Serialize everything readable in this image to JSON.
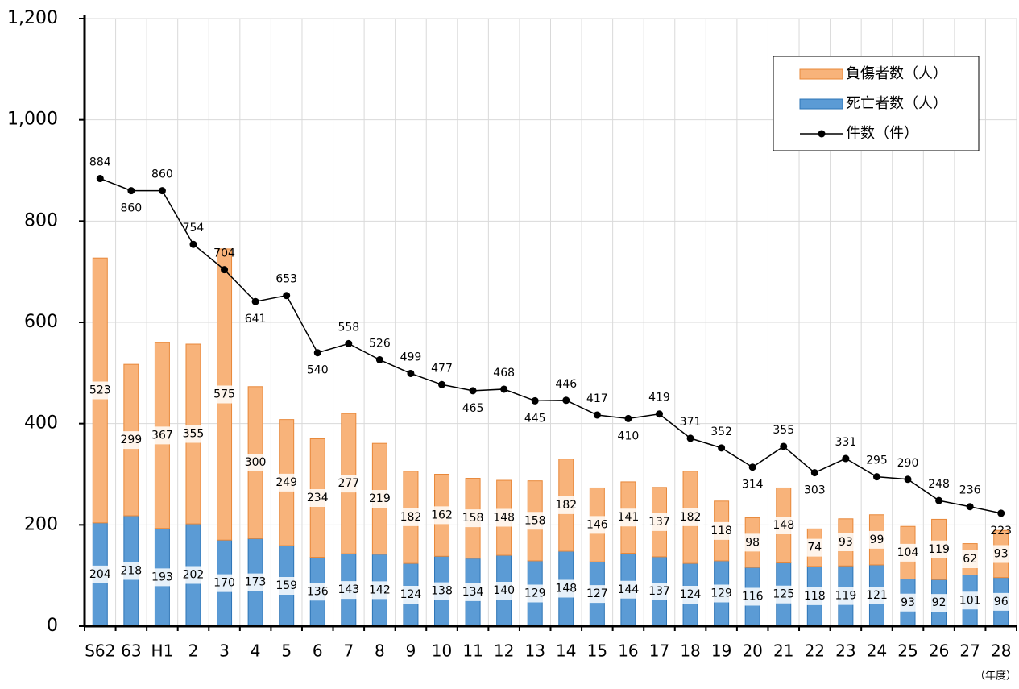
{
  "chart_data": {
    "type": "bar",
    "stacked": true,
    "categories": [
      "S62",
      "63",
      "H1",
      "2",
      "3",
      "4",
      "5",
      "6",
      "7",
      "8",
      "9",
      "10",
      "11",
      "12",
      "13",
      "14",
      "15",
      "16",
      "17",
      "18",
      "19",
      "20",
      "21",
      "22",
      "23",
      "24",
      "25",
      "26",
      "27",
      "28"
    ],
    "x_unit": "（年度）",
    "series": [
      {
        "name": "死亡者数（人）",
        "color": "#5b9bd5",
        "values": [
          204,
          218,
          193,
          202,
          170,
          173,
          159,
          136,
          143,
          142,
          124,
          138,
          134,
          140,
          129,
          148,
          127,
          144,
          137,
          124,
          129,
          116,
          125,
          118,
          119,
          121,
          93,
          92,
          101,
          96
        ]
      },
      {
        "name": "負傷者数（人）",
        "color": "#f8b37a",
        "values": [
          523,
          299,
          367,
          355,
          575,
          300,
          249,
          234,
          277,
          219,
          182,
          162,
          158,
          148,
          158,
          182,
          146,
          141,
          137,
          182,
          118,
          98,
          148,
          74,
          93,
          99,
          104,
          119,
          62,
          93
        ]
      },
      {
        "name": "件数（件）",
        "color": "#000000",
        "type": "line",
        "values": [
          884,
          860,
          860,
          754,
          704,
          641,
          653,
          540,
          558,
          526,
          499,
          477,
          465,
          468,
          445,
          446,
          417,
          410,
          419,
          371,
          352,
          314,
          355,
          303,
          331,
          295,
          290,
          248,
          236,
          223
        ]
      }
    ],
    "ylim": [
      0,
      1200
    ],
    "yticks": [
      0,
      200,
      400,
      600,
      800,
      {
        "value": 1000,
        "label": "1,000"
      },
      {
        "value": 1200,
        "label": "1,200"
      }
    ],
    "grid": true,
    "legend": "top-right"
  }
}
